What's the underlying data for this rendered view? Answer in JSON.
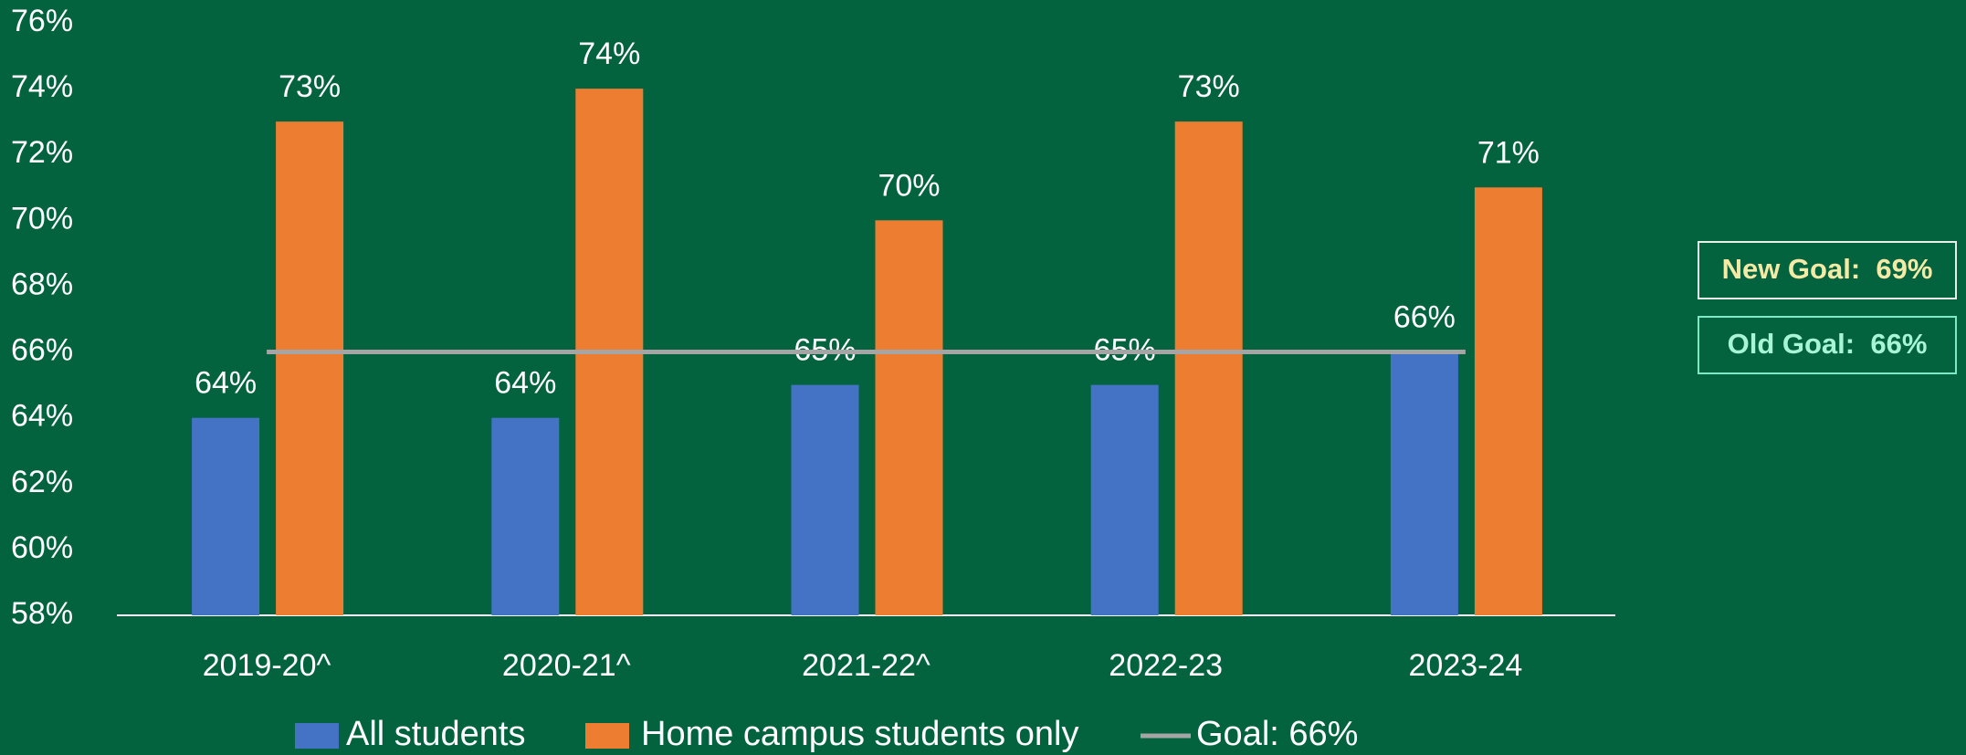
{
  "chart_data": {
    "type": "bar",
    "categories": [
      "2019-20^",
      "2020-21^",
      "2021-22^",
      "2022-23",
      "2023-24"
    ],
    "series": [
      {
        "name": "All students",
        "color": "#4472c4",
        "values": [
          64,
          64,
          65,
          65,
          66
        ],
        "value_labels": [
          "64%",
          "64%",
          "65%",
          "65%",
          "66%"
        ]
      },
      {
        "name": "Home campus students only",
        "color": "#ed7d31",
        "values": [
          73,
          74,
          70,
          73,
          71
        ],
        "value_labels": [
          "73%",
          "74%",
          "70%",
          "73%",
          "71%"
        ]
      }
    ],
    "goal": {
      "name": "Goal: 66%",
      "value": 66,
      "color": "#a5a5a5"
    },
    "ylim": [
      58,
      76
    ],
    "yticks": [
      {
        "value": 58,
        "label": "58%"
      },
      {
        "value": 60,
        "label": "60%"
      },
      {
        "value": 62,
        "label": "62%"
      },
      {
        "value": 64,
        "label": "64%"
      },
      {
        "value": 66,
        "label": "66%"
      },
      {
        "value": 68,
        "label": "68%"
      },
      {
        "value": 70,
        "label": "70%"
      },
      {
        "value": 72,
        "label": "72%"
      },
      {
        "value": 74,
        "label": "74%"
      },
      {
        "value": 76,
        "label": "76%"
      }
    ],
    "grid": false,
    "annotations": [
      {
        "text": "New Goal:  69%",
        "color": "#f5e9a6"
      },
      {
        "text": "Old Goal:  66%",
        "color": "#a8f5d6"
      }
    ]
  }
}
